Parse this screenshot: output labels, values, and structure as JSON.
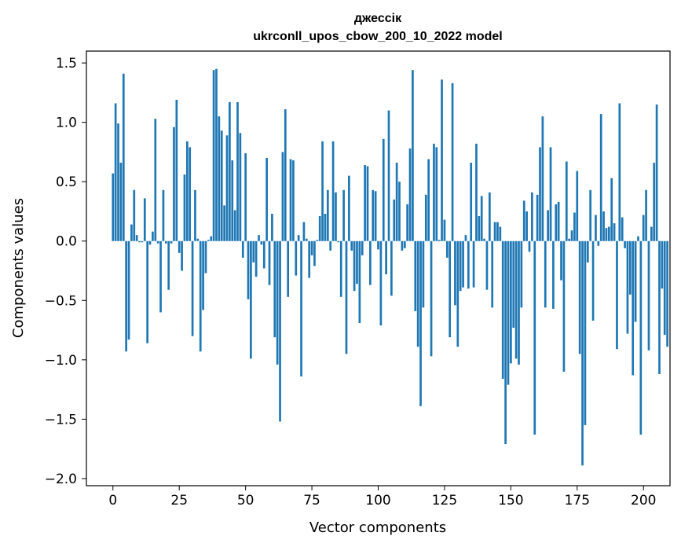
{
  "chart_data": {
    "type": "bar",
    "title": "джессік",
    "subtitle": "ukrconll_upos_cbow_200_10_2022 model",
    "xlabel": "Vector components",
    "ylabel": "Components values",
    "xlim": [
      -10,
      210
    ],
    "ylim": [
      -2.06,
      1.6
    ],
    "xticks": [
      0,
      25,
      50,
      75,
      100,
      125,
      150,
      175,
      200
    ],
    "yticks": [
      -2.0,
      -1.5,
      -1.0,
      -0.5,
      0.0,
      0.5,
      1.0,
      1.5
    ],
    "ytick_labels": [
      "−2.0",
      "−1.5",
      "−1.0",
      "−0.5",
      "0.0",
      "0.5",
      "1.0",
      "1.5"
    ],
    "bar_color": "#1f77b4",
    "grid": false,
    "values": [
      0.57,
      1.16,
      0.99,
      0.66,
      1.41,
      -0.93,
      -0.83,
      0.14,
      0.43,
      0.05,
      -0.01,
      -0.01,
      0.36,
      -0.86,
      -0.03,
      0.08,
      1.03,
      -0.02,
      -0.6,
      0.43,
      -0.02,
      -0.41,
      -0.02,
      0.96,
      1.19,
      -0.1,
      -0.25,
      0.56,
      0.84,
      0.79,
      -0.8,
      0.43,
      0.02,
      -0.93,
      -0.58,
      -0.27,
      0.01,
      0.04,
      1.44,
      1.45,
      1.05,
      0.93,
      0.3,
      0.89,
      1.17,
      0.68,
      0.26,
      1.17,
      0.91,
      -0.14,
      0.74,
      -0.49,
      -0.99,
      -0.18,
      -0.3,
      0.05,
      -0.03,
      -0.23,
      0.7,
      -0.37,
      0.23,
      -0.81,
      -1.04,
      -1.52,
      0.75,
      1.11,
      -0.47,
      0.69,
      0.68,
      -0.29,
      0.05,
      -1.14,
      0.16,
      0.02,
      -0.31,
      -0.12,
      -0.21,
      0.01,
      0.21,
      0.84,
      0.23,
      0.43,
      -0.08,
      0.84,
      0.41,
      -0.01,
      -0.47,
      0.43,
      -0.95,
      0.55,
      -0.08,
      -0.42,
      -0.36,
      -0.69,
      -0.12,
      0.64,
      0.63,
      -0.37,
      0.43,
      0.42,
      -0.07,
      -0.71,
      0.86,
      -0.28,
      1.1,
      -0.46,
      0.35,
      0.66,
      0.5,
      -0.08,
      -0.06,
      0.31,
      0.78,
      1.44,
      -0.59,
      -0.89,
      -1.39,
      -0.56,
      0.39,
      0.69,
      -0.97,
      0.82,
      0.79,
      0.01,
      1.36,
      0.18,
      -0.14,
      -0.81,
      1.33,
      -0.54,
      -0.89,
      -0.42,
      -0.39,
      0.05,
      -0.4,
      0.66,
      -0.39,
      0.82,
      0.21,
      0.38,
      0.02,
      -0.41,
      0.41,
      -0.56,
      0.16,
      0.16,
      0.12,
      -1.16,
      -1.71,
      -1.21,
      -1.03,
      -0.73,
      -0.99,
      -1.04,
      -0.56,
      0.34,
      0.25,
      -0.09,
      0.41,
      -1.63,
      0.39,
      0.79,
      1.05,
      -0.56,
      0.26,
      0.79,
      -0.57,
      0.31,
      0.33,
      -0.33,
      -1.1,
      0.67,
      0.02,
      0.09,
      0.24,
      0.59,
      -0.95,
      -1.89,
      -1.55,
      -0.18,
      0.43,
      -0.67,
      0.22,
      -0.04,
      1.07,
      0.25,
      0.11,
      0.12,
      0.53,
      0.15,
      -0.91,
      1.16,
      0.2,
      -0.06,
      -0.78,
      -0.45,
      -1.13,
      -0.68,
      0.04,
      -1.63,
      0.22,
      0.43,
      -0.92,
      0.12,
      0.66,
      1.15,
      -1.12,
      -0.4,
      -0.79,
      -0.89
    ]
  }
}
